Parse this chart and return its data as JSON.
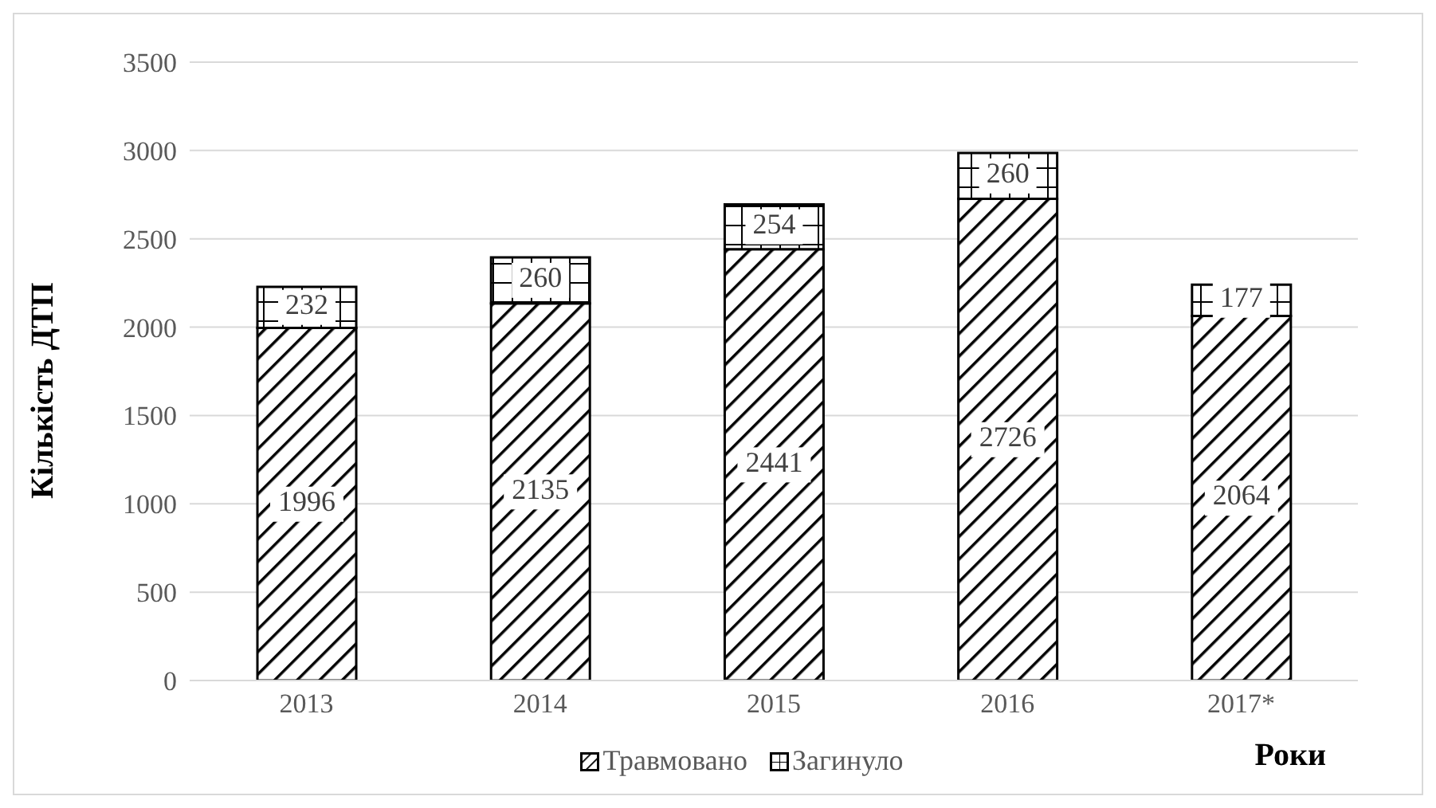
{
  "chart_data": {
    "type": "bar",
    "stacked": true,
    "categories": [
      "2013",
      "2014",
      "2015",
      "2016",
      "2017*"
    ],
    "series": [
      {
        "name": "Травмовано",
        "color": "#000000",
        "values": [
          1996,
          2135,
          2441,
          2726,
          2064
        ]
      },
      {
        "name": "Загинуло",
        "color": "#000000",
        "values": [
          232,
          260,
          254,
          260,
          177
        ]
      }
    ],
    "xlabel": "Роки",
    "ylabel": "Кількість ДТП",
    "ylim": [
      0,
      3500
    ],
    "yticks": [
      0,
      500,
      1000,
      1500,
      2000,
      2500,
      3000,
      3500
    ],
    "grid": "y",
    "legend": "bottom",
    "data_labels": true
  }
}
